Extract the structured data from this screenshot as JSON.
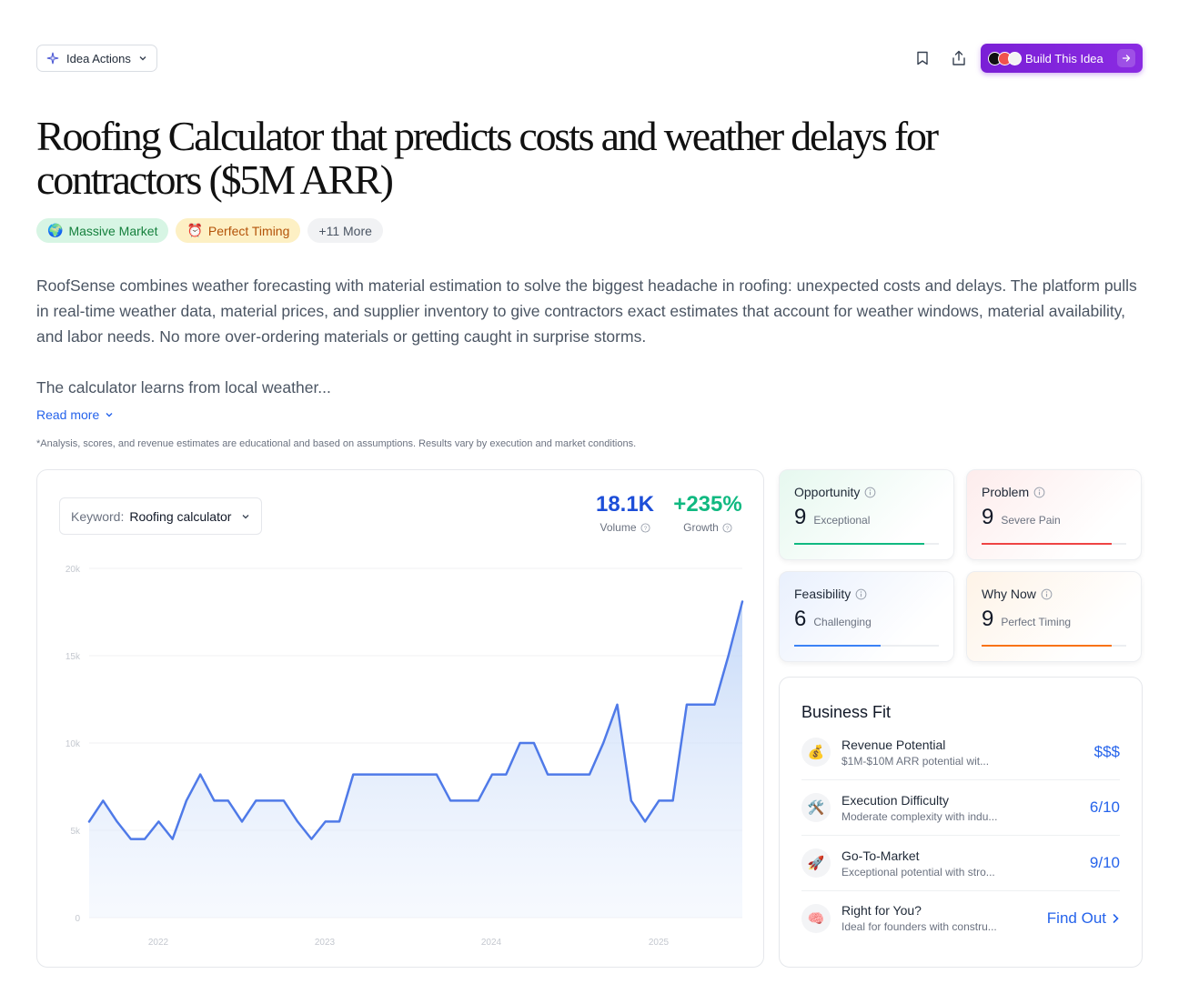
{
  "toolbar": {
    "idea_actions_label": "Idea Actions",
    "build_label": "Build This Idea"
  },
  "title": "Roofing Calculator that predicts costs and weather delays for contractors ($5M ARR)",
  "tags": [
    {
      "emoji": "🌍",
      "label": "Massive Market"
    },
    {
      "emoji": "⏰",
      "label": "Perfect Timing"
    },
    {
      "label": "+11 More"
    }
  ],
  "description": {
    "paragraph1": "RoofSense combines weather forecasting with material estimation to solve the biggest headache in roofing: unexpected costs and delays. The platform pulls in real-time weather data, material prices, and supplier inventory to give contractors exact estimates that account for weather windows, material availability, and labor needs. No more over-ordering materials or getting caught in surprise storms.",
    "paragraph2": "The calculator learns from local weather...",
    "read_more": "Read more"
  },
  "disclaimer": "*Analysis, scores, and revenue estimates are educational and based on assumptions. Results vary by execution and market conditions.",
  "keyword": {
    "label": "Keyword:",
    "value": "Roofing calculator"
  },
  "metrics": {
    "volume": {
      "value": "18.1K",
      "label": "Volume",
      "color": "#1d4ed8"
    },
    "growth": {
      "value": "+235%",
      "label": "Growth",
      "color": "#10b981"
    }
  },
  "chart_data": {
    "type": "area",
    "x_ticks": [
      "2022",
      "2023",
      "2024",
      "2025"
    ],
    "y_ticks": [
      "0",
      "5k",
      "10k",
      "15k",
      "20k"
    ],
    "ylim": [
      0,
      20000
    ],
    "color": "#4f7ae8",
    "values": [
      5500,
      6700,
      5500,
      4500,
      4500,
      5500,
      4500,
      6700,
      8200,
      6700,
      6700,
      5500,
      6700,
      6700,
      6700,
      5500,
      4500,
      5500,
      5500,
      8200,
      8200,
      8200,
      8200,
      8200,
      8200,
      8200,
      6700,
      6700,
      6700,
      8200,
      8200,
      10000,
      10000,
      8200,
      8200,
      8200,
      8200,
      10000,
      12200,
      6700,
      5500,
      6700,
      6700,
      12200,
      12200,
      12200,
      15000,
      18100
    ]
  },
  "scores": [
    {
      "label": "Opportunity",
      "value": "9",
      "desc": "Exceptional",
      "fill": 0.9,
      "color": "#10b981",
      "bg": "#e6f8ef"
    },
    {
      "label": "Problem",
      "value": "9",
      "desc": "Severe Pain",
      "fill": 0.9,
      "color": "#ef4444",
      "bg": "#fdecec"
    },
    {
      "label": "Feasibility",
      "value": "6",
      "desc": "Challenging",
      "fill": 0.6,
      "color": "#3b82f6",
      "bg": "#e9f0fd"
    },
    {
      "label": "Why Now",
      "value": "9",
      "desc": "Perfect Timing",
      "fill": 0.9,
      "color": "#f97316",
      "bg": "#fef3e7"
    }
  ],
  "business_fit": {
    "title": "Business Fit",
    "rows": [
      {
        "emoji": "💰",
        "name": "Revenue Potential",
        "sub": "$1M-$10M ARR potential wit...",
        "value": "$$$"
      },
      {
        "emoji": "🛠️",
        "name": "Execution Difficulty",
        "sub": "Moderate complexity with indu...",
        "value": "6/10"
      },
      {
        "emoji": "🚀",
        "name": "Go-To-Market",
        "sub": "Exceptional potential with stro...",
        "value": "9/10"
      },
      {
        "emoji": "🧠",
        "name": "Right for You?",
        "sub": "Ideal for founders with constru...",
        "value": "Find Out"
      }
    ]
  }
}
